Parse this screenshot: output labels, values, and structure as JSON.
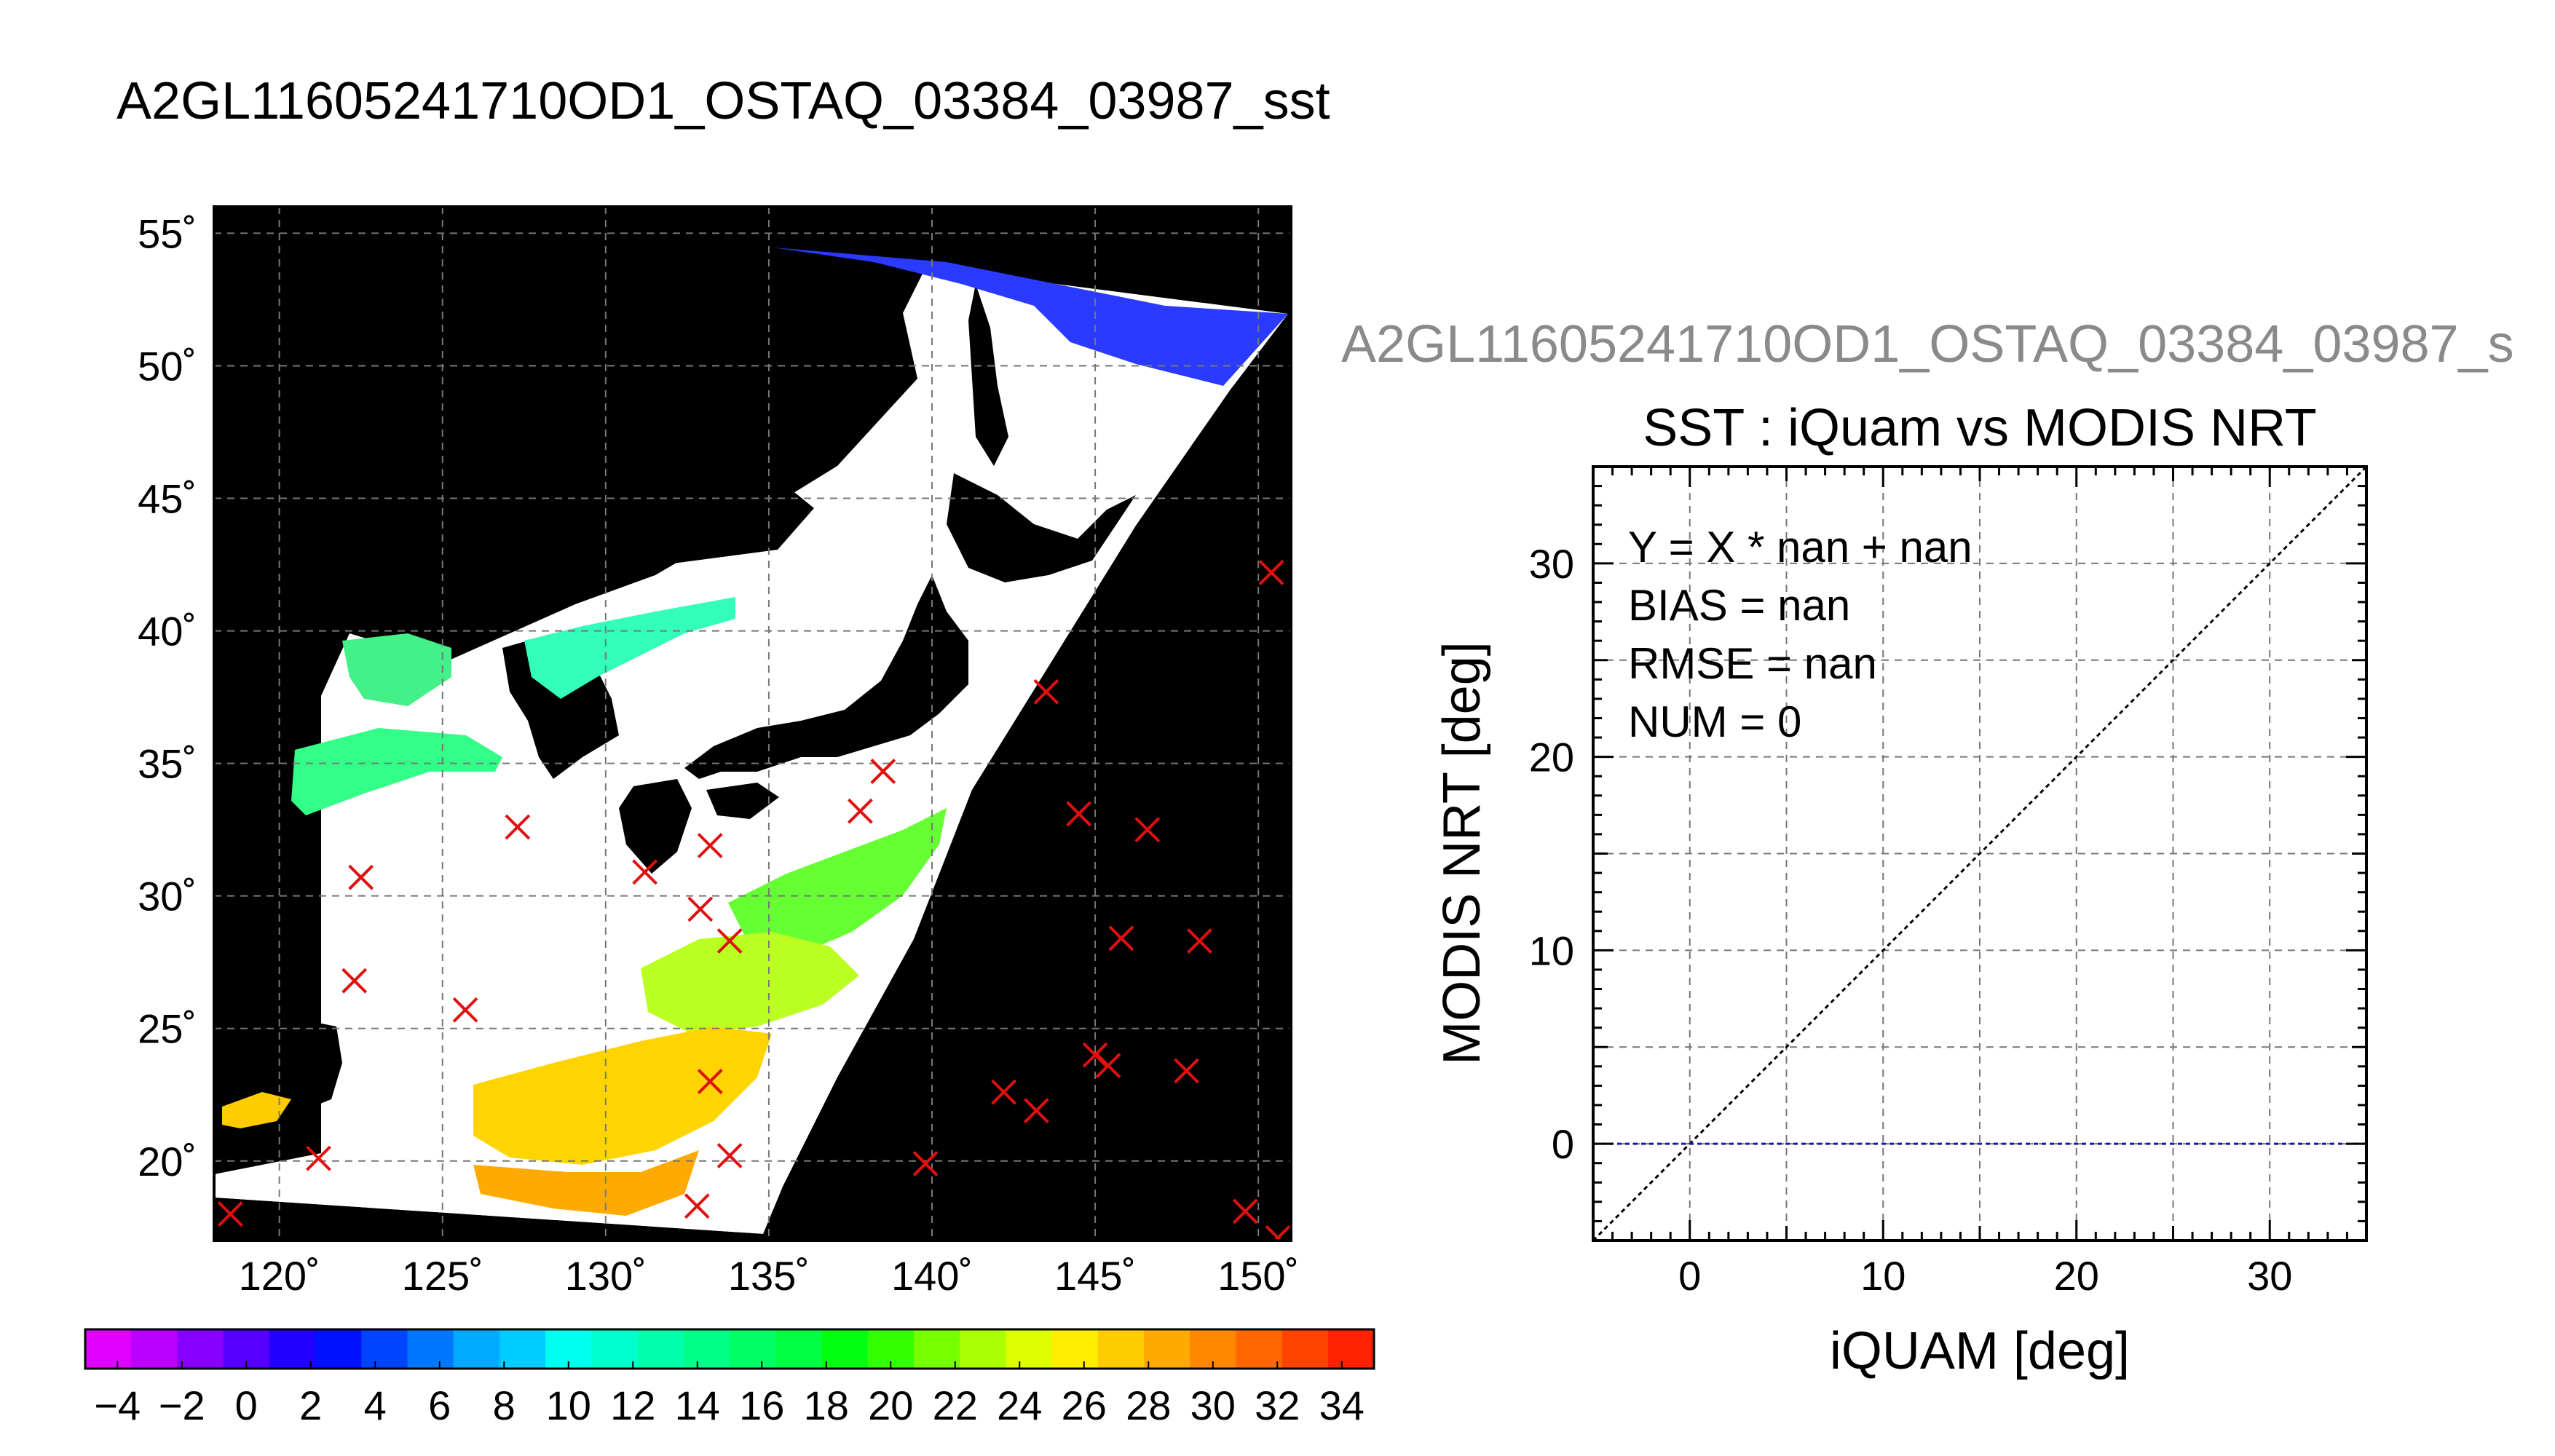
{
  "page": {
    "title": "A2GL11605241710OD1_OSTAQ_03384_03987_sst",
    "scatter_title_gray": "A2GL11605241710OD1_OSTAQ_03384_03987_s"
  },
  "colors": {
    "map_background": "#000000",
    "cloud_mask": "#ffffff",
    "matchup_marker": "#e01010",
    "one_to_one_line": "#000000",
    "zero_line": "#1a1aa0",
    "grid": "#777777"
  },
  "chart_data": [
    {
      "type": "heatmap",
      "kind": "map",
      "xlim": [
        118,
        151
      ],
      "ylim": [
        17,
        56
      ],
      "x_ticks": [
        120,
        125,
        130,
        135,
        140,
        145,
        150
      ],
      "x_tick_labels": [
        "120˚",
        "125˚",
        "130˚",
        "135˚",
        "140˚",
        "145˚",
        "150˚"
      ],
      "y_ticks": [
        20,
        25,
        30,
        35,
        40,
        45,
        50,
        55
      ],
      "y_tick_labels": [
        "20˚",
        "25˚",
        "30˚",
        "35˚",
        "40˚",
        "45˚",
        "50˚",
        "55˚"
      ],
      "grid": true,
      "matchup_points": [
        {
          "lon": 118.5,
          "lat": 18.0
        },
        {
          "lon": 121.2,
          "lat": 20.1
        },
        {
          "lon": 122.3,
          "lat": 26.8
        },
        {
          "lon": 122.5,
          "lat": 30.7
        },
        {
          "lon": 125.7,
          "lat": 25.7
        },
        {
          "lon": 127.3,
          "lat": 32.6
        },
        {
          "lon": 131.2,
          "lat": 30.9
        },
        {
          "lon": 132.8,
          "lat": 18.3
        },
        {
          "lon": 132.9,
          "lat": 29.5
        },
        {
          "lon": 133.2,
          "lat": 31.9
        },
        {
          "lon": 133.2,
          "lat": 23.0
        },
        {
          "lon": 133.8,
          "lat": 28.3
        },
        {
          "lon": 133.8,
          "lat": 20.2
        },
        {
          "lon": 137.8,
          "lat": 33.2
        },
        {
          "lon": 138.5,
          "lat": 34.7
        },
        {
          "lon": 139.8,
          "lat": 19.9
        },
        {
          "lon": 142.2,
          "lat": 22.6
        },
        {
          "lon": 143.2,
          "lat": 21.9
        },
        {
          "lon": 143.5,
          "lat": 37.7
        },
        {
          "lon": 144.5,
          "lat": 33.1
        },
        {
          "lon": 145.0,
          "lat": 24.0
        },
        {
          "lon": 145.4,
          "lat": 23.6
        },
        {
          "lon": 145.8,
          "lat": 28.4
        },
        {
          "lon": 146.6,
          "lat": 32.5
        },
        {
          "lon": 147.8,
          "lat": 23.4
        },
        {
          "lon": 148.2,
          "lat": 28.3
        },
        {
          "lon": 149.6,
          "lat": 18.1
        },
        {
          "lon": 150.4,
          "lat": 42.2
        },
        {
          "lon": 150.6,
          "lat": 17.1
        }
      ]
    },
    {
      "type": "heatmap",
      "kind": "colorbar",
      "range": [
        -5,
        35
      ],
      "tick_values": [
        -4,
        -2,
        0,
        2,
        4,
        6,
        8,
        10,
        12,
        14,
        16,
        18,
        20,
        22,
        24,
        26,
        28,
        30,
        32,
        34
      ],
      "tick_labels": [
        "−4",
        "−2",
        "0",
        "2",
        "4",
        "6",
        "8",
        "10",
        "12",
        "14",
        "16",
        "18",
        "20",
        "22",
        "24",
        "26",
        "28",
        "30",
        "32",
        "34"
      ],
      "colors": [
        "#e000ff",
        "#bb00ff",
        "#8800ff",
        "#5500ff",
        "#2200ff",
        "#0011ff",
        "#0044ff",
        "#0077ff",
        "#00aaff",
        "#00ccff",
        "#00ffee",
        "#00ffcc",
        "#00ffaa",
        "#00ff88",
        "#00ff66",
        "#00ff44",
        "#00ff11",
        "#33ff00",
        "#77ff00",
        "#aaff00",
        "#ddff00",
        "#ffee00",
        "#ffcc00",
        "#ffaa00",
        "#ff8800",
        "#ff6600",
        "#ff4400",
        "#ff2200"
      ]
    },
    {
      "type": "scatter",
      "title": "SST : iQuam vs MODIS NRT",
      "xlabel": "iQUAM [deg]",
      "ylabel": "MODIS NRT [deg]",
      "xlim": [
        -5,
        35
      ],
      "ylim": [
        -5,
        35
      ],
      "x_ticks": [
        0,
        10,
        20,
        30
      ],
      "y_ticks": [
        0,
        10,
        20,
        30
      ],
      "grid": true,
      "series": [],
      "one_to_one_line": true,
      "zero_line_y": 0,
      "annotations": [
        "Y = X * nan + nan",
        "BIAS = nan",
        "RMSE = nan",
        "NUM = 0"
      ]
    }
  ]
}
